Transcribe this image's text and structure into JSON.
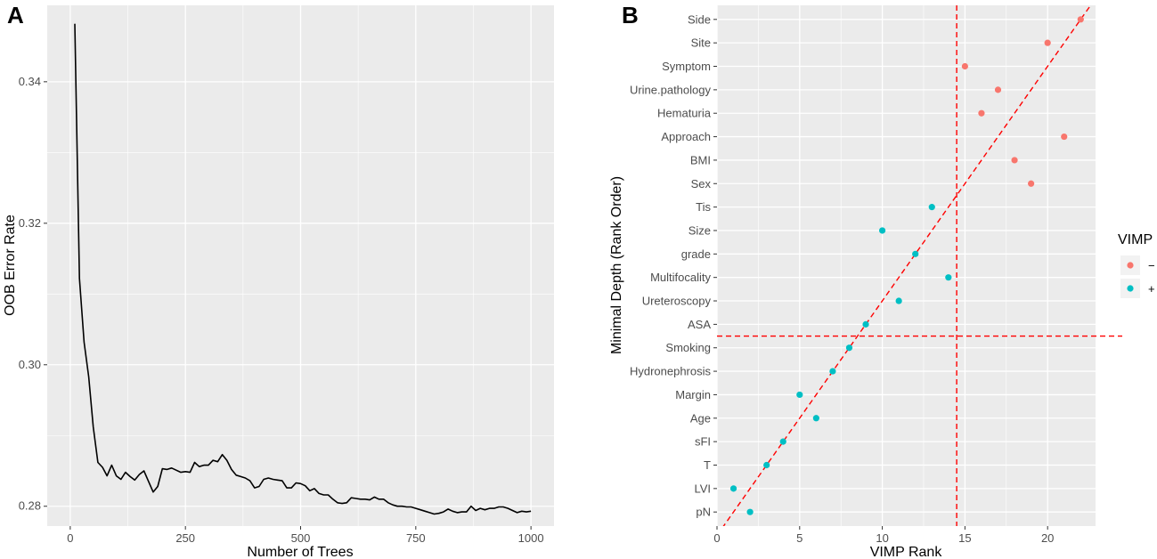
{
  "chart_data": [
    {
      "panel_label": "A",
      "type": "line",
      "xlabel": "Number of Trees",
      "ylabel": "OOB Error Rate",
      "xlim": [
        -50,
        1050
      ],
      "ylim": [
        0.2772,
        0.3508
      ],
      "xticks": [
        0,
        250,
        500,
        750,
        1000
      ],
      "yticks": [
        0.28,
        0.3,
        0.32,
        0.34
      ],
      "ytick_labels": [
        "0.28",
        "0.30",
        "0.32",
        "0.34"
      ],
      "grid": true,
      "series": [
        {
          "name": "OOB error",
          "color": "#000000",
          "x": [
            10,
            20,
            30,
            40,
            50,
            60,
            70,
            80,
            90,
            100,
            110,
            120,
            130,
            140,
            150,
            160,
            170,
            180,
            190,
            200,
            210,
            220,
            230,
            240,
            250,
            260,
            270,
            280,
            290,
            300,
            310,
            320,
            330,
            340,
            350,
            360,
            370,
            380,
            390,
            400,
            410,
            420,
            430,
            440,
            450,
            460,
            470,
            480,
            490,
            500,
            510,
            520,
            530,
            540,
            550,
            560,
            570,
            580,
            590,
            600,
            610,
            620,
            630,
            640,
            650,
            660,
            670,
            680,
            690,
            700,
            710,
            720,
            730,
            740,
            750,
            760,
            770,
            780,
            790,
            800,
            810,
            820,
            830,
            840,
            850,
            860,
            870,
            880,
            890,
            900,
            910,
            920,
            930,
            940,
            950,
            960,
            970,
            980,
            990,
            1000
          ],
          "y": [
            0.3482,
            0.3122,
            0.3032,
            0.2983,
            0.2912,
            0.2862,
            0.2855,
            0.2843,
            0.2858,
            0.2843,
            0.2838,
            0.2848,
            0.2842,
            0.2837,
            0.2845,
            0.285,
            0.2835,
            0.282,
            0.2828,
            0.2853,
            0.2852,
            0.2854,
            0.2851,
            0.2848,
            0.2849,
            0.2848,
            0.2862,
            0.2856,
            0.2858,
            0.2858,
            0.2865,
            0.2863,
            0.2873,
            0.2865,
            0.2852,
            0.2844,
            0.2842,
            0.284,
            0.2836,
            0.2826,
            0.2828,
            0.2838,
            0.284,
            0.2838,
            0.2837,
            0.2836,
            0.2826,
            0.2826,
            0.2833,
            0.2832,
            0.2829,
            0.2822,
            0.2825,
            0.2818,
            0.2816,
            0.2816,
            0.281,
            0.2805,
            0.2804,
            0.2805,
            0.2812,
            0.2811,
            0.281,
            0.281,
            0.2809,
            0.2813,
            0.281,
            0.281,
            0.2805,
            0.2802,
            0.28,
            0.28,
            0.2799,
            0.2799,
            0.2797,
            0.2795,
            0.2793,
            0.2791,
            0.2789,
            0.279,
            0.2792,
            0.2796,
            0.2793,
            0.2791,
            0.2792,
            0.2792,
            0.28,
            0.2794,
            0.2797,
            0.2795,
            0.2797,
            0.2797,
            0.2799,
            0.2799,
            0.2797,
            0.2794,
            0.2791,
            0.2793,
            0.2792,
            0.2793
          ]
        }
      ]
    },
    {
      "panel_label": "B",
      "type": "scatter",
      "xlabel": "VIMP Rank",
      "ylabel": "Minimal Depth (Rank Order)",
      "xlim": [
        0,
        22.9
      ],
      "xticks": [
        0,
        5,
        10,
        15,
        20
      ],
      "categories": [
        "pN",
        "LVI",
        "T",
        "sFI",
        "Age",
        "Margin",
        "Hydronephrosis",
        "Smoking",
        "ASA",
        "Ureteroscopy",
        "Multifocality",
        "grade",
        "Size",
        "Tis",
        "Sex",
        "BMI",
        "Approach",
        "Hematuria",
        "Urine.pathology",
        "Symptom",
        "Site",
        "Side"
      ],
      "grid": true,
      "legend": {
        "title": "VIMP",
        "placement": "right",
        "entries": [
          {
            "label": "−",
            "color": "#F8766D"
          },
          {
            "label": "+",
            "color": "#00BFC4"
          }
        ]
      },
      "points": [
        {
          "label": "pN",
          "x": 2,
          "group": "+"
        },
        {
          "label": "LVI",
          "x": 1,
          "group": "+"
        },
        {
          "label": "T",
          "x": 3,
          "group": "+"
        },
        {
          "label": "sFI",
          "x": 4,
          "group": "+"
        },
        {
          "label": "Age",
          "x": 6,
          "group": "+"
        },
        {
          "label": "Margin",
          "x": 5,
          "group": "+"
        },
        {
          "label": "Hydronephrosis",
          "x": 7,
          "group": "+"
        },
        {
          "label": "Smoking",
          "x": 8,
          "group": "+"
        },
        {
          "label": "ASA",
          "x": 9,
          "group": "+"
        },
        {
          "label": "Ureteroscopy",
          "x": 11,
          "group": "+"
        },
        {
          "label": "Multifocality",
          "x": 14,
          "group": "+"
        },
        {
          "label": "grade",
          "x": 12,
          "group": "+"
        },
        {
          "label": "Size",
          "x": 10,
          "group": "+"
        },
        {
          "label": "Tis",
          "x": 13,
          "group": "+"
        },
        {
          "label": "Sex",
          "x": 19,
          "group": "−"
        },
        {
          "label": "BMI",
          "x": 18,
          "group": "−"
        },
        {
          "label": "Approach",
          "x": 21,
          "group": "−"
        },
        {
          "label": "Hematuria",
          "x": 16,
          "group": "−"
        },
        {
          "label": "Urine.pathology",
          "x": 17,
          "group": "−"
        },
        {
          "label": "Symptom",
          "x": 15,
          "group": "−"
        },
        {
          "label": "Site",
          "x": 20,
          "group": "−"
        },
        {
          "label": "Side",
          "x": 22,
          "group": "−"
        }
      ],
      "reference_lines": {
        "color": "#FF0000",
        "vertical_x": 14.5,
        "horizontal_rank": 8.5,
        "diagonal": {
          "from": [
            0,
            0
          ],
          "to": [
            23,
            23
          ]
        }
      }
    }
  ]
}
